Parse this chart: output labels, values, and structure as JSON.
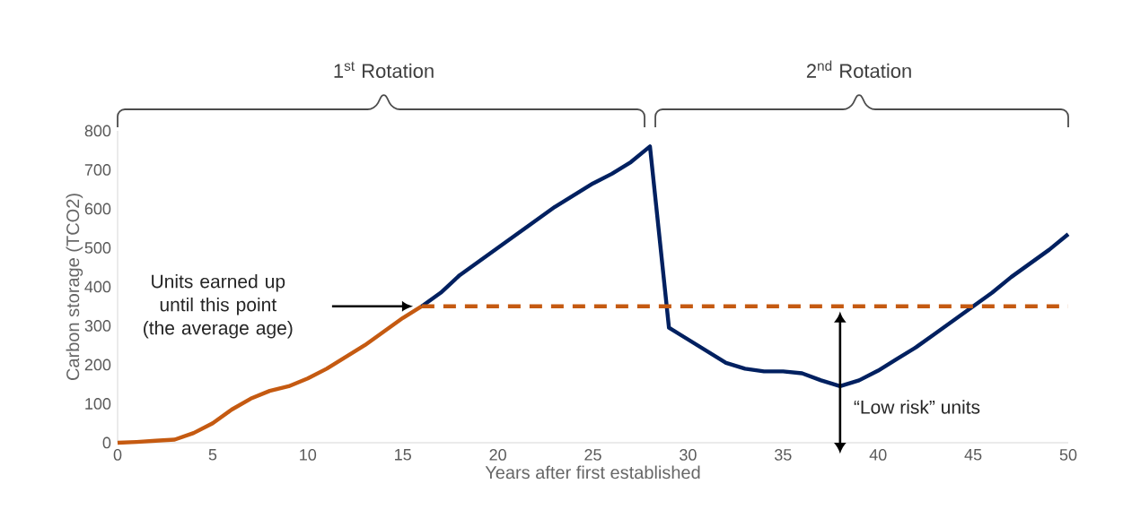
{
  "chart_data": {
    "type": "line",
    "xlabel": "Years after first established",
    "ylabel": "Carbon storage (TCO2)",
    "xlim": [
      0,
      50
    ],
    "xticks": [
      0,
      5,
      10,
      15,
      20,
      25,
      30,
      35,
      40,
      45,
      50
    ],
    "ylim": [
      0,
      800
    ],
    "yticks": [
      0,
      100,
      200,
      300,
      400,
      500,
      600,
      700,
      800
    ],
    "grid": false,
    "marker": "none",
    "series": [
      {
        "color": "#c55a11",
        "x": [
          0,
          1,
          2,
          3,
          4,
          5,
          6,
          7,
          8,
          9,
          10,
          11,
          12,
          13,
          14,
          15,
          16
        ],
        "values": [
          0,
          2,
          5,
          8,
          25,
          50,
          85,
          113,
          133,
          145,
          165,
          190,
          220,
          250,
          285,
          320,
          350
        ]
      },
      {
        "color": "#002060",
        "x": [
          16,
          17,
          18,
          19,
          20,
          21,
          22,
          23,
          24,
          25,
          26,
          27,
          28,
          29,
          30,
          31,
          32,
          33,
          34,
          35,
          36,
          37,
          38,
          39,
          40,
          41,
          42,
          43,
          44,
          45,
          46,
          47,
          48,
          49,
          50
        ],
        "values": [
          350,
          385,
          430,
          465,
          500,
          535,
          570,
          605,
          635,
          665,
          690,
          720,
          760,
          295,
          265,
          235,
          205,
          190,
          183,
          183,
          178,
          160,
          145,
          160,
          185,
          215,
          245,
          280,
          315,
          350,
          385,
          425,
          460,
          495,
          535
        ]
      },
      {
        "color": "#c55a11",
        "line_style": "dashed",
        "x": [
          16,
          50
        ],
        "values": [
          350,
          350
        ]
      }
    ],
    "annotations": [
      "Units earned up until this point (the average age)",
      "“Low risk” units",
      "1$^{st}$ Rotation",
      "2$^{nd}$ Rotation"
    ]
  }
}
